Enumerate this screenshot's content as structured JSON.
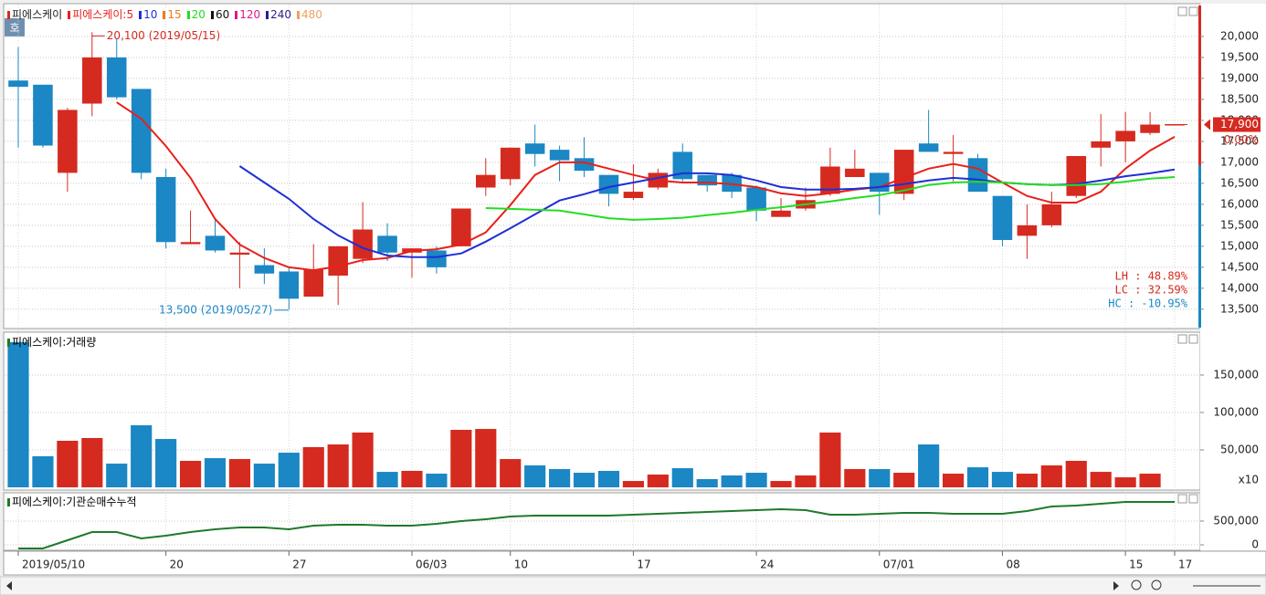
{
  "toolbar": {
    "button": "호"
  },
  "chart_data": [
    {
      "type": "candlestick",
      "title": "피에스케이",
      "color": "#d52a1f",
      "up_color": "#d52a1f",
      "down_color": "#1b87c4",
      "categories": [
        "2019/05/10",
        null,
        null,
        null,
        null,
        null,
        "20",
        null,
        null,
        null,
        null,
        "27",
        null,
        null,
        null,
        null,
        "06/03",
        null,
        null,
        null,
        "10",
        null,
        null,
        null,
        null,
        "17",
        null,
        null,
        null,
        null,
        "24",
        null,
        null,
        null,
        null,
        "07/01",
        null,
        null,
        null,
        null,
        "08",
        null,
        null,
        null,
        null,
        "15",
        null,
        "17"
      ],
      "open": [
        18950,
        18850,
        16750,
        18400,
        19500,
        18750,
        16650,
        15050,
        15250,
        14800,
        14550,
        14400,
        13800,
        14300,
        14700,
        15250,
        14850,
        14900,
        15000,
        16400,
        16600,
        17450,
        17300,
        17100,
        16700,
        16150,
        16400,
        17250,
        16700,
        16700,
        16400,
        15700,
        15900,
        16250,
        16650,
        16750,
        16250,
        17450,
        17200,
        17100,
        16200,
        15250,
        15500,
        16200,
        17350,
        17500,
        17700,
        17900
      ],
      "high": [
        19750,
        18850,
        18300,
        20100,
        19950,
        18750,
        16850,
        15850,
        15650,
        15100,
        14950,
        14500,
        15050,
        15000,
        16050,
        15550,
        14950,
        15000,
        15900,
        17100,
        17350,
        17900,
        17400,
        17600,
        16700,
        16950,
        16850,
        17450,
        16700,
        16750,
        16450,
        16150,
        16400,
        17350,
        17300,
        16750,
        17300,
        18250,
        17650,
        17200,
        16200,
        16000,
        16300,
        17150,
        18150,
        18200,
        18200,
        17900
      ],
      "low": [
        17350,
        17350,
        16300,
        18100,
        18500,
        16600,
        14950,
        15050,
        14850,
        14000,
        14100,
        13500,
        13800,
        13600,
        14600,
        14650,
        14250,
        14350,
        15000,
        16200,
        16450,
        16900,
        16550,
        16650,
        15950,
        16100,
        16350,
        16550,
        16300,
        16150,
        15600,
        15700,
        15850,
        16200,
        16650,
        15750,
        16100,
        17250,
        16550,
        16300,
        15000,
        14700,
        15450,
        16150,
        16900,
        17000,
        17650,
        17900
      ],
      "close": [
        18800,
        17400,
        18250,
        19500,
        18550,
        16750,
        15100,
        15100,
        14900,
        14850,
        14350,
        13750,
        14450,
        15000,
        15400,
        14850,
        14950,
        14500,
        15900,
        16700,
        17350,
        17200,
        17050,
        16800,
        16250,
        16300,
        16750,
        16600,
        16450,
        16300,
        15850,
        15850,
        16100,
        16900,
        16850,
        16300,
        17300,
        17250,
        17250,
        16300,
        15150,
        15500,
        16000,
        17150,
        17500,
        17750,
        17900,
        17900
      ],
      "series": [
        {
          "name": "피에스케이:5",
          "color": "#e8201a",
          "values": [
            null,
            null,
            null,
            null,
            18430,
            18040,
            17390,
            16630,
            15650,
            15040,
            14720,
            14500,
            14430,
            14520,
            14670,
            14720,
            14890,
            14930,
            15040,
            15330,
            15980,
            16700,
            17000,
            17000,
            16850,
            16700,
            16570,
            16520,
            16520,
            16480,
            16410,
            16260,
            16200,
            16260,
            16350,
            16410,
            16630,
            16850,
            16960,
            16850,
            16520,
            16200,
            16040,
            16040,
            16300,
            16850,
            17280,
            17610
          ]
        },
        {
          "name": "10",
          "color": "#1f2fd6",
          "values": [
            null,
            null,
            null,
            null,
            null,
            null,
            null,
            null,
            null,
            16910,
            16520,
            16130,
            15650,
            15260,
            14960,
            14780,
            14740,
            14740,
            14830,
            15110,
            15430,
            15760,
            16090,
            16240,
            16410,
            16520,
            16630,
            16740,
            16740,
            16700,
            16570,
            16410,
            16350,
            16350,
            16370,
            16410,
            16480,
            16570,
            16630,
            16590,
            16520,
            16480,
            16460,
            16480,
            16570,
            16670,
            16740,
            16830
          ]
        },
        {
          "name": "15",
          "color": "#f07a1a",
          "values": [
            null,
            null,
            null,
            null,
            null,
            null,
            null,
            null,
            null,
            null,
            null,
            null,
            null,
            null,
            null,
            null,
            null,
            null,
            null,
            null,
            null,
            null,
            null,
            null,
            null,
            null,
            null,
            null,
            null,
            null,
            null,
            null,
            null,
            null,
            null,
            null,
            null,
            null,
            null,
            null,
            null,
            null,
            null,
            null,
            null,
            null,
            null,
            null
          ]
        },
        {
          "name": "20",
          "color": "#22dd22",
          "values": [
            null,
            null,
            null,
            null,
            null,
            null,
            null,
            null,
            null,
            null,
            null,
            null,
            null,
            null,
            null,
            null,
            null,
            null,
            null,
            15910,
            15890,
            15870,
            15850,
            15760,
            15670,
            15630,
            15650,
            15680,
            15740,
            15800,
            15870,
            15930,
            16000,
            16070,
            16150,
            16220,
            16330,
            16460,
            16520,
            16540,
            16520,
            16480,
            16460,
            16460,
            16480,
            16540,
            16610,
            16650
          ]
        },
        {
          "name": "60",
          "color": "#111111",
          "values": [
            null,
            null,
            null,
            null,
            null,
            null,
            null,
            null,
            null,
            null,
            null,
            null,
            null,
            null,
            null,
            null,
            null,
            null,
            null,
            null,
            null,
            null,
            null,
            null,
            null,
            null,
            null,
            null,
            null,
            null,
            null,
            null,
            null,
            null,
            null,
            null,
            null,
            null,
            null,
            null,
            null,
            null,
            null,
            null,
            null,
            null,
            null,
            null
          ]
        },
        {
          "name": "120",
          "color": "#e0168a",
          "values": [
            null,
            null,
            null,
            null,
            null,
            null,
            null,
            null,
            null,
            null,
            null,
            null,
            null,
            null,
            null,
            null,
            null,
            null,
            null,
            null,
            null,
            null,
            null,
            null,
            null,
            null,
            null,
            null,
            null,
            null,
            null,
            null,
            null,
            null,
            null,
            null,
            null,
            null,
            null,
            null,
            null,
            null,
            null,
            null,
            null,
            null,
            null,
            null
          ]
        },
        {
          "name": "240",
          "color": "#2a1f8c",
          "values": [
            null,
            null,
            null,
            null,
            null,
            null,
            null,
            null,
            null,
            null,
            null,
            null,
            null,
            null,
            null,
            null,
            null,
            null,
            null,
            null,
            null,
            null,
            null,
            null,
            null,
            null,
            null,
            null,
            null,
            null,
            null,
            null,
            null,
            null,
            null,
            null,
            null,
            null,
            null,
            null,
            null,
            null,
            null,
            null,
            null,
            null,
            null,
            null
          ]
        },
        {
          "name": "480",
          "color": "#f0a060",
          "values": [
            null,
            null,
            null,
            null,
            null,
            null,
            null,
            null,
            null,
            null,
            null,
            null,
            null,
            null,
            null,
            null,
            null,
            null,
            null,
            null,
            null,
            null,
            null,
            null,
            null,
            null,
            null,
            null,
            null,
            null,
            null,
            null,
            null,
            null,
            null,
            null,
            null,
            null,
            null,
            null,
            null,
            null,
            null,
            null,
            null,
            null,
            null,
            null
          ]
        }
      ],
      "high_label": "20,100 (2019/05/15)",
      "low_label": "13,500 (2019/05/27)",
      "last_label": "17,900",
      "change_label": "0.00%",
      "stats": [
        "LH :  48.89%",
        "LC :  32.59%",
        "HC : -10.95%"
      ],
      "ylim": [
        13040,
        20760
      ],
      "yticks": [
        {
          "value": 13500,
          "label": "13,500"
        },
        {
          "value": 14000,
          "label": "14,000"
        },
        {
          "value": 14500,
          "label": "14,500"
        },
        {
          "value": 15000,
          "label": "15,000"
        },
        {
          "value": 15500,
          "label": "15,500"
        },
        {
          "value": 16000,
          "label": "16,000"
        },
        {
          "value": 16500,
          "label": "16,500"
        },
        {
          "value": 17000,
          "label": "17,000"
        },
        {
          "value": 17500,
          "label": "17,500"
        },
        {
          "value": 18000,
          "label": "18,000"
        },
        {
          "value": 18500,
          "label": "18,500"
        },
        {
          "value": 19000,
          "label": "19,000"
        },
        {
          "value": 19500,
          "label": "19,500"
        },
        {
          "value": 20000,
          "label": "20,000"
        }
      ],
      "grid": true
    },
    {
      "type": "bar",
      "title": "피에스케이:거래량",
      "color": "#1e7a2a",
      "unit_label": "x10",
      "values": [
        194000,
        41500,
        62200,
        65900,
        31700,
        82900,
        64600,
        35400,
        39000,
        37800,
        31700,
        46300,
        53700,
        57300,
        73200,
        20700,
        22000,
        18300,
        76800,
        78000,
        37800,
        29300,
        24400,
        19500,
        22000,
        8500,
        17100,
        25600,
        11000,
        15900,
        19500,
        8500,
        15900,
        73200,
        24400,
        24400,
        19500,
        57300,
        18300,
        26800,
        20700,
        18300,
        29300,
        35400,
        20700,
        13400,
        18300,
        null
      ],
      "ylim": [
        -3600,
        206000
      ],
      "yticks": [
        {
          "value": 50000,
          "label": "50,000"
        },
        {
          "value": 100000,
          "label": "100,000"
        },
        {
          "value": 150000,
          "label": "150,000"
        }
      ],
      "grid": true
    },
    {
      "type": "line",
      "title": "피에스케이:기관순매수누적",
      "color": "#1e7a2a",
      "values": [
        -77000,
        -77000,
        96000,
        269000,
        269000,
        135000,
        192000,
        269000,
        327000,
        365000,
        365000,
        327000,
        404000,
        423000,
        423000,
        404000,
        404000,
        442000,
        500000,
        538000,
        596000,
        615000,
        615000,
        615000,
        615000,
        635000,
        654000,
        673000,
        692000,
        712000,
        731000,
        750000,
        731000,
        635000,
        635000,
        654000,
        673000,
        673000,
        654000,
        654000,
        654000,
        712000,
        808000,
        827000,
        865000,
        904000,
        904000,
        904000
      ],
      "ylim": [
        -115000,
        1096000
      ],
      "yticks": [
        0,
        {
          "value": 500000,
          "label": "500,000"
        }
      ],
      "grid": true
    }
  ]
}
